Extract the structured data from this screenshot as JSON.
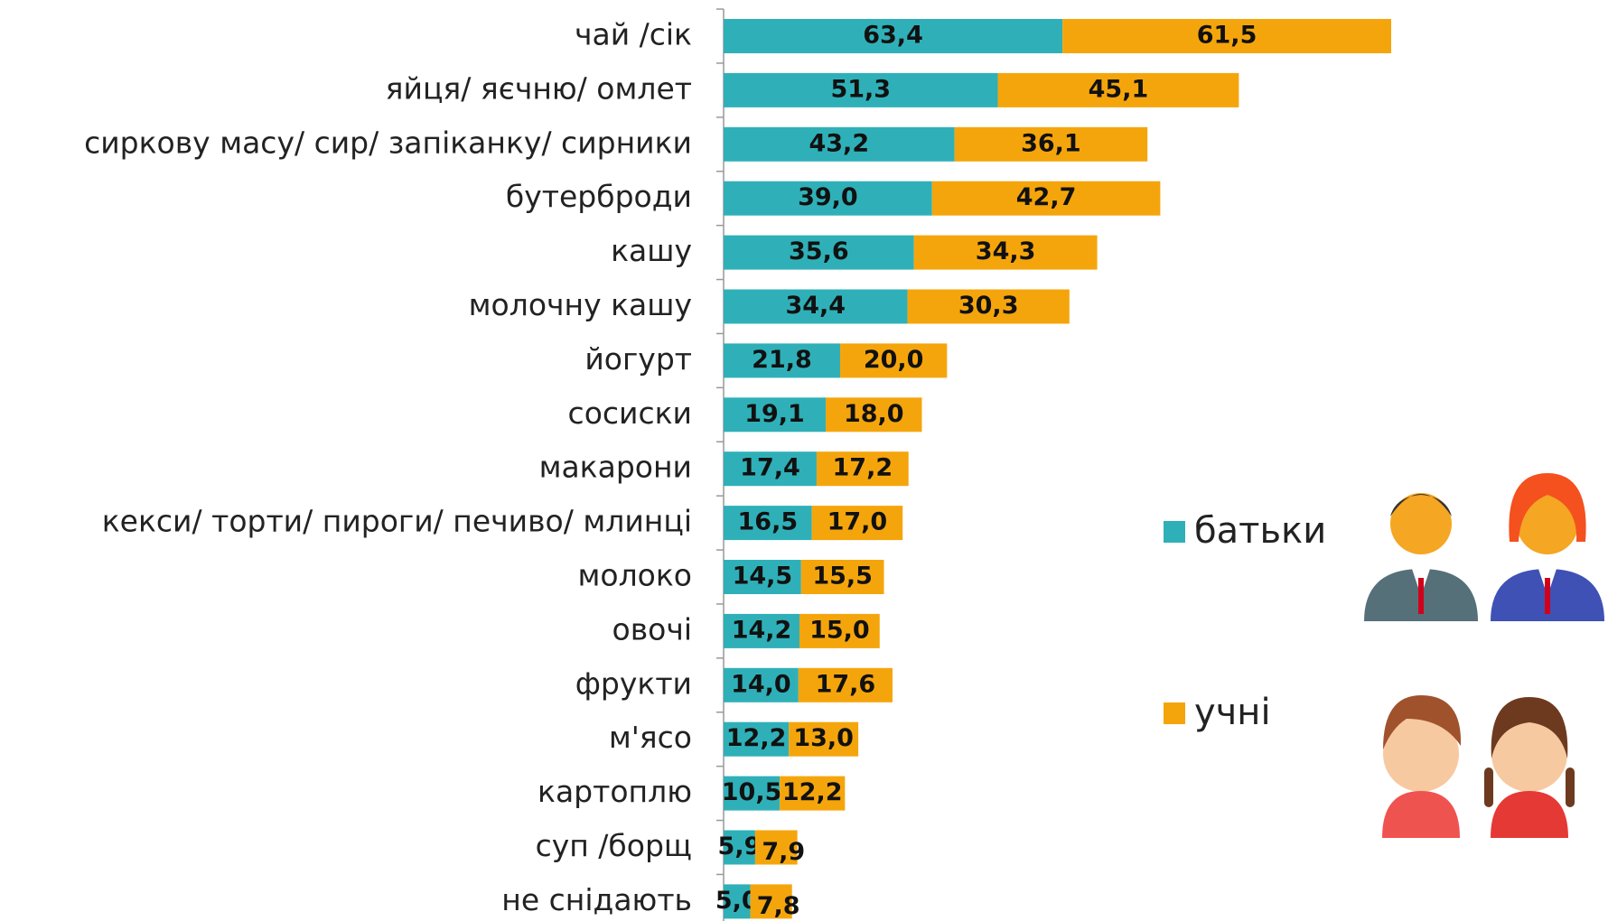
{
  "chart_data": {
    "type": "stacked_bar_horizontal",
    "categories": [
      "чай /сік",
      "яйця/ яєчню/ омлет",
      "сиркову масу/ сир/ запіканку/ сирники",
      "бутерброди",
      "кашу",
      "молочну кашу",
      "йогурт",
      "сосиски",
      "макарони",
      "кекси/ торти/ пироги/ печиво/ млинці",
      "молоко",
      "овочі",
      "фрукти",
      "м'ясо",
      "картоплю",
      "суп /борщ",
      "не снідають"
    ],
    "series": [
      {
        "name": "батьки",
        "color": "#2fb0b8",
        "values": [
          63.4,
          51.3,
          43.2,
          39.0,
          35.6,
          34.4,
          21.8,
          19.1,
          17.4,
          16.5,
          14.5,
          14.2,
          14.0,
          12.2,
          10.5,
          5.9,
          5.0
        ],
        "value_labels": [
          "63,4",
          "51,3",
          "43,2",
          "39,0",
          "35,6",
          "34,4",
          "21,8",
          "19,1",
          "17,4",
          "16,5",
          "14,5",
          "14,2",
          "14,0",
          "12,2",
          "10,5",
          "5,9",
          "5,0"
        ]
      },
      {
        "name": "учні",
        "color": "#f5a50c",
        "values": [
          61.5,
          45.1,
          36.1,
          42.7,
          34.3,
          30.3,
          20.0,
          18.0,
          17.2,
          17.0,
          15.5,
          15.0,
          17.6,
          13.0,
          12.2,
          7.9,
          7.8
        ],
        "value_labels": [
          "61,5",
          "45,1",
          "36,1",
          "42,7",
          "34,3",
          "30,3",
          "20,0",
          "18,0",
          "17,2",
          "17,0",
          "15,5",
          "15,0",
          "17,6",
          "13,0",
          "12,2",
          "7,9",
          "7,8"
        ]
      }
    ]
  }
}
